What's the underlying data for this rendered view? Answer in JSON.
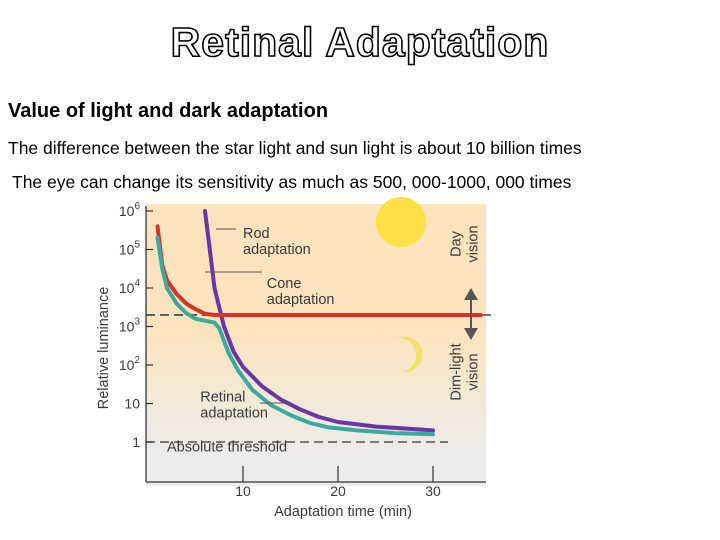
{
  "slide": {
    "title": "Retinal Adaptation",
    "subhead": "Value of light and dark adaptation",
    "line1": "The difference between the star light and sun light is about 10 billion times",
    "line2": "The eye can change its sensitivity as much as 500, 000-1000, 000 times"
  },
  "chart_data": {
    "type": "line",
    "xlabel": "Adaptation time (min)",
    "ylabel": "Relative luminance",
    "xlim": [
      0,
      35
    ],
    "ylim": [
      0,
      6
    ],
    "y_scale": "log",
    "x_ticks": [
      {
        "value": 10,
        "label": "10"
      },
      {
        "value": 20,
        "label": "20"
      },
      {
        "value": 30,
        "label": "30"
      }
    ],
    "y_ticks": [
      {
        "value": 0,
        "base": "1",
        "exp": ""
      },
      {
        "value": 1,
        "base": "10",
        "exp": ""
      },
      {
        "value": 2,
        "base": "10",
        "exp": "2"
      },
      {
        "value": 3,
        "base": "10",
        "exp": "3"
      },
      {
        "value": 4,
        "base": "10",
        "exp": "4"
      },
      {
        "value": 5,
        "base": "10",
        "exp": "5"
      },
      {
        "value": 6,
        "base": "10",
        "exp": "6"
      }
    ],
    "series": [
      {
        "name": "Rod adaptation",
        "color": "#6b35a3",
        "points": [
          [
            6,
            6
          ],
          [
            6.5,
            5
          ],
          [
            7,
            4
          ],
          [
            8,
            3
          ],
          [
            9,
            2.35
          ],
          [
            10,
            1.95
          ],
          [
            12,
            1.45
          ],
          [
            14,
            1.1
          ],
          [
            16,
            0.85
          ],
          [
            18,
            0.65
          ],
          [
            20,
            0.52
          ],
          [
            24,
            0.4
          ],
          [
            30,
            0.3
          ]
        ]
      },
      {
        "name": "Cone adaptation",
        "color": "#d8322a",
        "points": [
          [
            1,
            5.6
          ],
          [
            1.5,
            4.6
          ],
          [
            2,
            4.2
          ],
          [
            3,
            3.85
          ],
          [
            4,
            3.6
          ],
          [
            5,
            3.45
          ],
          [
            6,
            3.33
          ],
          [
            7,
            3.3
          ],
          [
            8,
            3.3
          ],
          [
            35,
            3.3
          ]
        ]
      },
      {
        "name": "Retinal adaptation",
        "color": "#3aa9a0",
        "points": [
          [
            1,
            5.3
          ],
          [
            1.5,
            4.5
          ],
          [
            2,
            4
          ],
          [
            3,
            3.6
          ],
          [
            4,
            3.35
          ],
          [
            5,
            3.2
          ],
          [
            6,
            3.15
          ],
          [
            7,
            3.1
          ],
          [
            7.5,
            2.95
          ],
          [
            8.5,
            2.3
          ],
          [
            9.5,
            1.85
          ],
          [
            11,
            1.35
          ],
          [
            13,
            0.95
          ],
          [
            15,
            0.7
          ],
          [
            17,
            0.5
          ],
          [
            19,
            0.38
          ],
          [
            22,
            0.3
          ],
          [
            26,
            0.23
          ],
          [
            30,
            0.2
          ]
        ]
      }
    ],
    "reference_lines": [
      {
        "name": "cone-rod transition",
        "y": 3.3,
        "color": "#555555"
      },
      {
        "name": "Absolute threshold",
        "y": 0,
        "color": "#555555"
      }
    ],
    "annotations": [
      {
        "text": [
          "Rod",
          "adaptation"
        ],
        "x": 10,
        "y": 5.3,
        "color": "#3a3a3a"
      },
      {
        "text": [
          "Cone",
          "adaptation"
        ],
        "x": 12.5,
        "y": 4.0,
        "color": "#3a3a3a"
      },
      {
        "text": [
          "Retinal",
          "adaptation"
        ],
        "x": 5.5,
        "y": 1.05,
        "color": "#3a3a3a"
      },
      {
        "text": [
          "Absolute threshold"
        ],
        "x": 2,
        "y": -0.25,
        "color": "#3a3a3a"
      }
    ],
    "side_labels": [
      {
        "lines": [
          "Day",
          "vision"
        ]
      },
      {
        "lines": [
          "Dim-light",
          "vision"
        ]
      }
    ],
    "colors": {
      "day_band": "#fbe4bd",
      "night_band": "#ececec",
      "sun": "#fde047",
      "moon": "#f6e06b",
      "arrow": "#555555"
    },
    "grid": false
  }
}
